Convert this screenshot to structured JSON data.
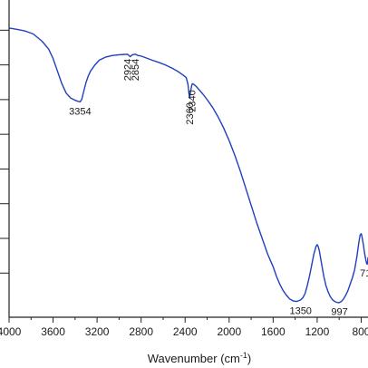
{
  "chart_data": {
    "type": "line",
    "xlabel_text": "Wavenumber (cm",
    "xlabel_exp": "-1",
    "xlabel_close": ")",
    "ylabel": "",
    "x_reversed": true,
    "xlim": [
      4000,
      738
    ],
    "ylim": [
      0,
      1
    ],
    "x_ticks": [
      4000,
      3600,
      3200,
      2800,
      2400,
      2000,
      1600,
      1200,
      800
    ],
    "x_tick_labels": [
      "4000",
      "3600",
      "3200",
      "2800",
      "2400",
      "2000",
      "1600",
      "1200",
      "800"
    ],
    "y_ticks": [
      0.14,
      0.25,
      0.36,
      0.47,
      0.58,
      0.69,
      0.8,
      0.91
    ],
    "y_tick_labels_visible": false,
    "series": [
      {
        "color": "#1f3fbf",
        "x": [
          4000,
          3920,
          3850,
          3780,
          3700,
          3640,
          3600,
          3560,
          3520,
          3480,
          3440,
          3400,
          3370,
          3354,
          3340,
          3320,
          3300,
          3280,
          3260,
          3220,
          3180,
          3120,
          3060,
          3000,
          2960,
          2924,
          2900,
          2880,
          2854,
          2830,
          2800,
          2760,
          2700,
          2640,
          2580,
          2520,
          2460,
          2420,
          2390,
          2375,
          2365,
          2360,
          2355,
          2348,
          2340,
          2335,
          2330,
          2320,
          2300,
          2270,
          2240,
          2200,
          2150,
          2100,
          2050,
          2000,
          1950,
          1900,
          1850,
          1800,
          1750,
          1700,
          1650,
          1600,
          1570,
          1540,
          1510,
          1480,
          1450,
          1420,
          1390,
          1370,
          1350,
          1330,
          1310,
          1290,
          1270,
          1250,
          1230,
          1210,
          1200,
          1190,
          1180,
          1160,
          1140,
          1120,
          1100,
          1080,
          1060,
          1040,
          1020,
          1000,
          997,
          980,
          960,
          940,
          920,
          900,
          880,
          860,
          840,
          820,
          810,
          800,
          795,
          790,
          780,
          770,
          760,
          750,
          745,
          740,
          738
        ],
        "values": [
          0.917,
          0.912,
          0.907,
          0.898,
          0.875,
          0.85,
          0.82,
          0.78,
          0.74,
          0.71,
          0.695,
          0.688,
          0.684,
          0.683,
          0.69,
          0.718,
          0.745,
          0.765,
          0.78,
          0.8,
          0.815,
          0.825,
          0.83,
          0.832,
          0.833,
          0.834,
          0.826,
          0.832,
          0.834,
          0.83,
          0.828,
          0.823,
          0.815,
          0.808,
          0.8,
          0.79,
          0.778,
          0.768,
          0.76,
          0.74,
          0.71,
          0.695,
          0.705,
          0.72,
          0.735,
          0.74,
          0.74,
          0.738,
          0.732,
          0.72,
          0.708,
          0.69,
          0.665,
          0.635,
          0.6,
          0.56,
          0.515,
          0.465,
          0.41,
          0.355,
          0.3,
          0.25,
          0.2,
          0.16,
          0.13,
          0.105,
          0.085,
          0.07,
          0.058,
          0.052,
          0.05,
          0.052,
          0.055,
          0.062,
          0.075,
          0.1,
          0.13,
          0.165,
          0.2,
          0.225,
          0.23,
          0.224,
          0.21,
          0.17,
          0.13,
          0.1,
          0.08,
          0.065,
          0.055,
          0.05,
          0.047,
          0.046,
          0.047,
          0.05,
          0.058,
          0.07,
          0.085,
          0.105,
          0.125,
          0.15,
          0.19,
          0.24,
          0.26,
          0.265,
          0.26,
          0.25,
          0.23,
          0.205,
          0.185,
          0.17,
          0.168,
          0.18,
          0.19
        ]
      }
    ],
    "annotations": [
      {
        "text": "3354",
        "x": 3354,
        "y": 0.683,
        "rotate": false
      },
      {
        "text": "2924",
        "x": 2924,
        "y": 0.834,
        "rotate": true
      },
      {
        "text": "2854",
        "x": 2854,
        "y": 0.834,
        "rotate": true
      },
      {
        "text": "2360",
        "x": 2360,
        "y": 0.695,
        "rotate": true
      },
      {
        "text": "2340",
        "x": 2340,
        "y": 0.735,
        "rotate": true
      },
      {
        "text": "1350",
        "x": 1350,
        "y": 0.05,
        "rotate": false
      },
      {
        "text": "997",
        "x": 997,
        "y": 0.047,
        "rotate": false
      },
      {
        "text": "71",
        "x": 770,
        "y": 0.17,
        "rotate": false
      }
    ],
    "grid": false,
    "legend": "none"
  }
}
